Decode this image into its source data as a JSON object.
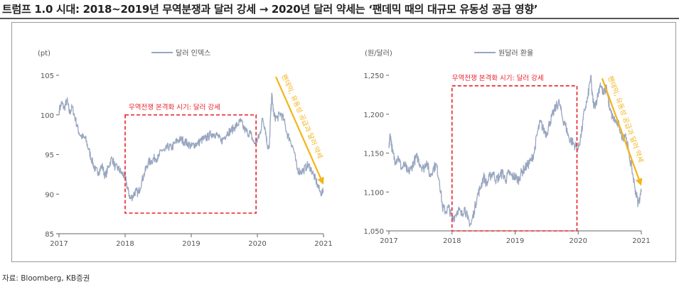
{
  "title": "트럼프 1.0 시대: 2018~2019년 무역분쟁과 달러 강세 → 2020년 달러 약세는 ‘팬데믹 때의 대규모 유동성 공급 영향’",
  "source": "자료: Bloomberg, KB증권",
  "colors": {
    "series": "#98a6c0",
    "box": "#e8202a",
    "arrow": "#f2b418",
    "axis": "#666666",
    "text": "#555555"
  },
  "chart_data": [
    {
      "type": "line",
      "unit_label": "(pt)",
      "legend": "달러 인덱스",
      "ylim": [
        85,
        105
      ],
      "yticks": [
        85,
        90,
        95,
        100,
        105
      ],
      "ytick_labels": [
        "85",
        "90",
        "95",
        "100",
        "105"
      ],
      "xlim": [
        2017,
        2021
      ],
      "xtick_labels": [
        "2017",
        "2018",
        "2019",
        "2020",
        "2021"
      ],
      "series": [
        {
          "x": [
            2017.0,
            2017.04,
            2017.08,
            2017.12,
            2017.16,
            2017.2,
            2017.25,
            2017.3,
            2017.35,
            2017.4,
            2017.45,
            2017.5,
            2017.55,
            2017.6,
            2017.65,
            2017.7,
            2017.75,
            2017.8,
            2017.85,
            2017.9,
            2017.95,
            2018.0,
            2018.04,
            2018.08,
            2018.12,
            2018.16,
            2018.2,
            2018.25,
            2018.3,
            2018.35,
            2018.4,
            2018.45,
            2018.5,
            2018.55,
            2018.6,
            2018.65,
            2018.7,
            2018.75,
            2018.8,
            2018.85,
            2018.9,
            2018.95,
            2019.0,
            2019.05,
            2019.1,
            2019.15,
            2019.2,
            2019.25,
            2019.3,
            2019.35,
            2019.4,
            2019.45,
            2019.5,
            2019.55,
            2019.6,
            2019.65,
            2019.7,
            2019.75,
            2019.8,
            2019.85,
            2019.9,
            2019.95,
            2020.0,
            2020.04,
            2020.08,
            2020.12,
            2020.15,
            2020.18,
            2020.2,
            2020.22,
            2020.25,
            2020.3,
            2020.35,
            2020.4,
            2020.45,
            2020.5,
            2020.55,
            2020.6,
            2020.65,
            2020.7,
            2020.75,
            2020.8,
            2020.85,
            2020.9,
            2020.95,
            2021.0
          ],
          "y": [
            100.5,
            101.5,
            100.8,
            101.9,
            100.2,
            101.0,
            99.4,
            97.8,
            97.2,
            97.0,
            95.6,
            94.2,
            93.0,
            92.8,
            93.6,
            92.2,
            93.5,
            94.6,
            93.4,
            93.2,
            92.6,
            92.2,
            90.6,
            89.4,
            89.8,
            90.4,
            90.1,
            91.6,
            92.8,
            94.0,
            94.2,
            94.6,
            94.5,
            95.6,
            95.4,
            96.0,
            95.8,
            96.4,
            96.8,
            96.9,
            96.6,
            96.4,
            96.0,
            96.3,
            96.4,
            96.8,
            97.0,
            97.2,
            97.6,
            97.6,
            97.4,
            96.6,
            97.2,
            97.8,
            98.0,
            98.4,
            98.8,
            99.2,
            98.2,
            97.8,
            97.6,
            96.4,
            96.8,
            97.6,
            99.6,
            98.2,
            96.2,
            95.8,
            100.0,
            102.6,
            99.8,
            99.6,
            100.2,
            99.4,
            97.6,
            96.8,
            95.6,
            93.2,
            92.8,
            93.0,
            93.6,
            93.4,
            92.4,
            91.4,
            90.2,
            90.2
          ]
        }
      ],
      "annotation_box": {
        "x": [
          2018.0,
          2019.98
        ],
        "y": [
          87.6,
          100.0
        ],
        "label": "무역전쟁 본격화 시기: 달러 강세"
      },
      "arrow_text": "팬데믹, 유동성 공급과 달러 약세",
      "arrow": {
        "from": [
          2020.28,
          104.8
        ],
        "to": [
          2021.0,
          91.2
        ]
      }
    },
    {
      "type": "line",
      "unit_label": "(원/달러)",
      "legend": "원달러 환율",
      "ylim": [
        1050,
        1250
      ],
      "yticks": [
        1050,
        1100,
        1150,
        1200,
        1250
      ],
      "ytick_labels": [
        "1,050",
        "1,100",
        "1,150",
        "1,200",
        "1,250"
      ],
      "xlim": [
        2017,
        2021
      ],
      "xtick_labels": [
        "2017",
        "2018",
        "2019",
        "2020",
        "2021"
      ],
      "series": [
        {
          "x": [
            2017.0,
            2017.02,
            2017.06,
            2017.1,
            2017.15,
            2017.2,
            2017.25,
            2017.3,
            2017.35,
            2017.4,
            2017.45,
            2017.5,
            2017.55,
            2017.6,
            2017.65,
            2017.7,
            2017.75,
            2017.8,
            2017.85,
            2017.9,
            2017.95,
            2018.0,
            2018.05,
            2018.1,
            2018.15,
            2018.2,
            2018.25,
            2018.3,
            2018.35,
            2018.4,
            2018.45,
            2018.5,
            2018.55,
            2018.6,
            2018.65,
            2018.7,
            2018.75,
            2018.8,
            2018.85,
            2018.9,
            2018.95,
            2019.0,
            2019.05,
            2019.1,
            2019.15,
            2019.2,
            2019.25,
            2019.3,
            2019.35,
            2019.4,
            2019.45,
            2019.5,
            2019.55,
            2019.6,
            2019.65,
            2019.7,
            2019.75,
            2019.8,
            2019.85,
            2019.9,
            2019.95,
            2020.0,
            2020.05,
            2020.1,
            2020.15,
            2020.2,
            2020.22,
            2020.25,
            2020.3,
            2020.35,
            2020.4,
            2020.45,
            2020.5,
            2020.55,
            2020.6,
            2020.65,
            2020.7,
            2020.75,
            2020.8,
            2020.85,
            2020.9,
            2020.95,
            2021.0
          ],
          "y": [
            1160,
            1175,
            1150,
            1140,
            1145,
            1130,
            1135,
            1125,
            1130,
            1140,
            1145,
            1135,
            1130,
            1140,
            1120,
            1130,
            1135,
            1115,
            1080,
            1075,
            1080,
            1065,
            1070,
            1078,
            1070,
            1080,
            1065,
            1058,
            1075,
            1095,
            1105,
            1120,
            1110,
            1120,
            1125,
            1115,
            1120,
            1125,
            1115,
            1125,
            1120,
            1120,
            1115,
            1125,
            1130,
            1135,
            1140,
            1150,
            1175,
            1190,
            1180,
            1175,
            1190,
            1200,
            1210,
            1215,
            1195,
            1185,
            1170,
            1165,
            1160,
            1155,
            1175,
            1205,
            1220,
            1250,
            1225,
            1210,
            1220,
            1240,
            1225,
            1235,
            1205,
            1195,
            1190,
            1185,
            1170,
            1175,
            1150,
            1130,
            1105,
            1085,
            1100
          ]
        }
      ],
      "annotation_box": {
        "x": [
          2018.0,
          2019.98
        ],
        "y": [
          1050,
          1236.5
        ],
        "label": "무역전쟁 본격화 시기: 달러 강세"
      },
      "arrow_text": "팬데믹, 유동성 공급과 달러 약세",
      "arrow": {
        "from": [
          2020.38,
          1246
        ],
        "to": [
          2021.0,
          1108
        ]
      }
    }
  ]
}
